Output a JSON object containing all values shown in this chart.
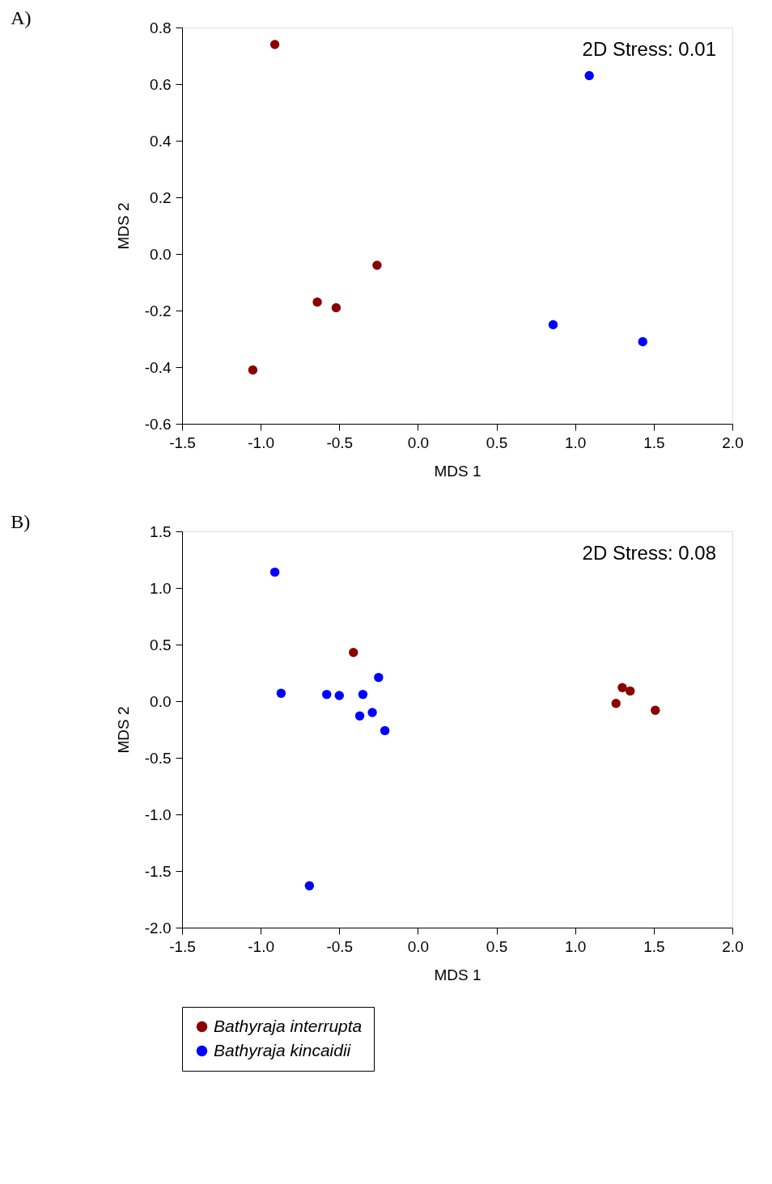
{
  "chart_data": [
    {
      "type": "scatter",
      "title": "A)",
      "xlabel": "MDS 1",
      "ylabel": "MDS 2",
      "annotations": [
        "2D Stress: 0.01"
      ],
      "marker": "circle",
      "grid": false,
      "legend": false,
      "xlim": [
        -1.5,
        2.0
      ],
      "ylim": [
        -0.6,
        0.8
      ],
      "xticks": [
        -1.5,
        {
          "value": -1,
          "label": "-1.0"
        },
        -0.5,
        {
          "value": 0,
          "label": "0.0"
        },
        0.5,
        {
          "value": 1,
          "label": "1.0"
        },
        1.5,
        {
          "value": 2,
          "label": "2.0"
        }
      ],
      "yticks": [
        -0.6,
        -0.4,
        -0.2,
        {
          "value": 0,
          "label": "0.0"
        },
        0.2,
        0.4,
        0.6,
        0.8
      ],
      "series": [
        {
          "color": "#8b0000",
          "x": [
            -0.91,
            -0.26,
            -0.64,
            -0.52,
            -1.05
          ],
          "values": [
            0.74,
            -0.04,
            -0.17,
            -0.19,
            -0.41
          ]
        },
        {
          "color": "#0000ff",
          "x": [
            1.09,
            0.86,
            1.43
          ],
          "values": [
            0.63,
            -0.25,
            -0.31
          ]
        }
      ]
    },
    {
      "type": "scatter",
      "title": "B)",
      "xlabel": "MDS 1",
      "ylabel": "MDS 2",
      "annotations": [
        "2D Stress: 0.08"
      ],
      "marker": "circle",
      "grid": false,
      "legend": "bottom",
      "xlim": [
        -1.5,
        2.0
      ],
      "ylim": [
        -2.0,
        1.5
      ],
      "xticks": [
        -1.5,
        {
          "value": -1,
          "label": "-1.0"
        },
        -0.5,
        {
          "value": 0,
          "label": "0.0"
        },
        0.5,
        {
          "value": 1,
          "label": "1.0"
        },
        1.5,
        {
          "value": 2,
          "label": "2.0"
        }
      ],
      "yticks": [
        {
          "value": -2,
          "label": "-2.0"
        },
        -1.5,
        {
          "value": -1,
          "label": "-1.0"
        },
        -0.5,
        {
          "value": 0,
          "label": "0.0"
        },
        0.5,
        {
          "value": 1,
          "label": "1.0"
        },
        1.5
      ],
      "series": [
        {
          "name": "Bathyraja interrupta",
          "color": "#8b0000",
          "x": [
            -0.41,
            1.3,
            1.35,
            1.26,
            1.51
          ],
          "values": [
            0.43,
            0.12,
            0.09,
            -0.02,
            -0.08
          ]
        },
        {
          "name": "Bathyraja kincaidii",
          "color": "#0000ff",
          "x": [
            -0.91,
            -0.87,
            -0.58,
            -0.5,
            -0.35,
            -0.25,
            -0.37,
            -0.29,
            -0.21,
            -0.69
          ],
          "values": [
            1.14,
            0.07,
            0.06,
            0.05,
            0.06,
            0.21,
            -0.13,
            -0.1,
            -0.26,
            -1.63
          ]
        }
      ]
    }
  ]
}
